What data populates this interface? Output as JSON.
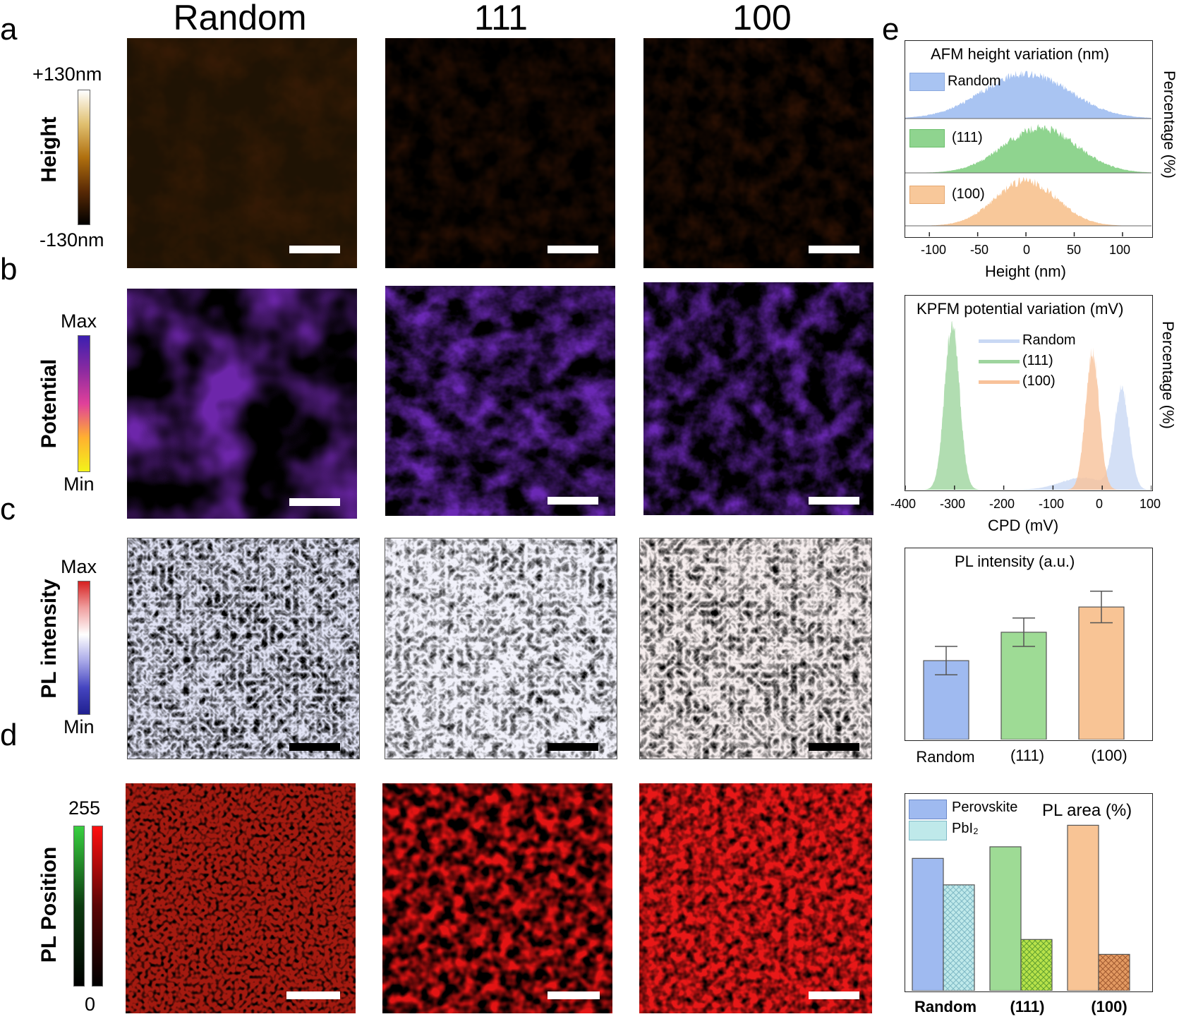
{
  "panel_labels": [
    "a",
    "b",
    "c",
    "d",
    "e"
  ],
  "column_titles": [
    "Random",
    "111",
    "100"
  ],
  "rows": {
    "height": {
      "label": "Height",
      "max": "+130nm",
      "min": "-130nm",
      "colors": [
        "#000000",
        "#5a2a05",
        "#b0700f",
        "#e0c070",
        "#ffffff"
      ]
    },
    "potential": {
      "label": "Potential",
      "max": "Max",
      "min": "Min",
      "colors": [
        "#3b1fb0",
        "#8a2aa0",
        "#e0409a",
        "#ffb030",
        "#f3f31a"
      ]
    },
    "pl_intensity": {
      "label": "PL intensity",
      "max": "Max",
      "min": "Min",
      "colors": [
        "#d62020",
        "#f0a0a0",
        "#ffffff",
        "#a8a8e8",
        "#4545c0",
        "#202090"
      ]
    },
    "pl_position": {
      "label": "PL Position",
      "max": "255",
      "min": "0",
      "colors": [
        "#38d040",
        "#e01010"
      ]
    }
  },
  "charts": {
    "afm": {
      "title": "AFM height variation (nm)",
      "ylabel": "Percentage (%)",
      "xlabel": "Height (nm)",
      "legend": [
        "Random",
        "(111)",
        "(100)"
      ],
      "colors": [
        "#a9c4f2",
        "#8fd48f",
        "#f8c89a"
      ]
    },
    "kpfm": {
      "title": "KPFM potential variation (mV)",
      "ylabel": "Percentage (%)",
      "xlabel": "CPD (mV)",
      "legend": [
        "Random",
        "(111)",
        "(100)"
      ],
      "colors": [
        "#c9d8f4",
        "#9ed49e",
        "#f8c29a"
      ]
    },
    "pl_intensity": {
      "title": "PL intensity (a.u.)",
      "categories": [
        "Random",
        "(111)",
        "(100)"
      ],
      "colors": [
        "#9fbaf0",
        "#9edb95",
        "#f8c495"
      ]
    },
    "pl_area": {
      "title": "PL area (%)",
      "legend": [
        "Perovskite",
        "PbI₂"
      ],
      "categories": [
        "Random",
        "(111)",
        "(100)"
      ]
    }
  },
  "chart_data": [
    {
      "type": "area",
      "title": "AFM height variation (nm)",
      "xlabel": "Height (nm)",
      "ylabel": "Percentage (%)",
      "xlim": [
        -125,
        130
      ],
      "xticks": [
        -100,
        -50,
        0,
        50,
        100
      ],
      "series": [
        {
          "name": "Random",
          "center": 0,
          "width": 45
        },
        {
          "name": "(111)",
          "center": 15,
          "width": 38
        },
        {
          "name": "(100)",
          "center": 0,
          "width": 32
        }
      ]
    },
    {
      "type": "area",
      "title": "KPFM potential variation (mV)",
      "xlabel": "CPD (mV)",
      "ylabel": "Percentage (%)",
      "xlim": [
        -400,
        100
      ],
      "xticks": [
        -400,
        -300,
        -200,
        -100,
        0,
        100
      ],
      "series": [
        {
          "name": "Random",
          "center": 40,
          "width": 15,
          "peak": 0.6
        },
        {
          "name": "(111)",
          "center": -305,
          "width": 15,
          "peak": 1.0
        },
        {
          "name": "(100)",
          "center": -20,
          "width": 14,
          "peak": 0.83
        }
      ]
    },
    {
      "type": "bar",
      "title": "PL intensity (a.u.)",
      "categories": [
        "Random",
        "(111)",
        "(100)"
      ],
      "values": [
        0.5,
        0.68,
        0.84
      ],
      "errors": [
        0.09,
        0.09,
        0.1
      ],
      "ylim": [
        0,
        1.1
      ]
    },
    {
      "type": "bar",
      "title": "PL area (%)",
      "categories": [
        "Random",
        "(111)",
        "(100)"
      ],
      "series": [
        {
          "name": "Perovskite",
          "values": [
            0.8,
            0.87,
            1.0
          ]
        },
        {
          "name": "PbI₂",
          "values": [
            0.64,
            0.31,
            0.22
          ]
        }
      ],
      "ylim": [
        0,
        1.1
      ]
    }
  ]
}
